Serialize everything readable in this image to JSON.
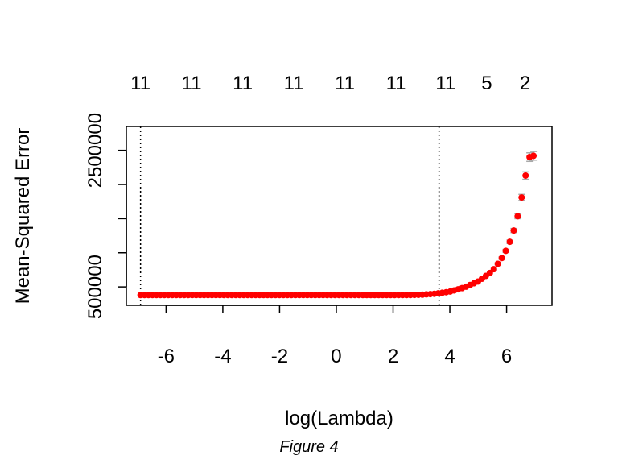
{
  "caption": "Figure 4",
  "chart_data": {
    "type": "scatter",
    "xlabel": "log(Lambda)",
    "ylabel": "Mean-Squared Error",
    "xlim": [
      -7.4,
      7.6
    ],
    "ylim": [
      230000,
      2850000
    ],
    "x_ticks": [
      -6,
      -4,
      -2,
      0,
      2,
      4,
      6
    ],
    "y_ticks": [
      500000,
      1000000,
      1500000,
      2000000,
      2500000
    ],
    "y_tick_labels": [
      "500000",
      "",
      "",
      "",
      "2500000"
    ],
    "top_ticks": [
      -6.9,
      -5.1,
      -3.3,
      -1.5,
      0.3,
      2.1,
      3.85,
      5.3,
      6.65
    ],
    "top_tick_labels": [
      "11",
      "11",
      "11",
      "11",
      "11",
      "11",
      "11",
      "5",
      "2"
    ],
    "vlines": [
      -6.9,
      3.62
    ],
    "point_color": "#ff0000",
    "errorbar_color": "#a9a9a9",
    "log_lambda_start": -6.9,
    "log_lambda_end": 6.95,
    "n_points": 100,
    "curve_keypoints": {
      "x": [
        -6.9,
        2.5,
        3.0,
        3.5,
        4.0,
        4.5,
        5.0,
        5.5,
        5.8,
        6.0,
        6.2,
        6.4,
        6.55,
        6.7,
        6.8,
        6.95
      ],
      "y": [
        380000,
        380000,
        385000,
        400000,
        430000,
        490000,
        580000,
        730000,
        900000,
        1050000,
        1250000,
        1550000,
        1850000,
        2200000,
        2400000,
        2420000
      ]
    }
  }
}
